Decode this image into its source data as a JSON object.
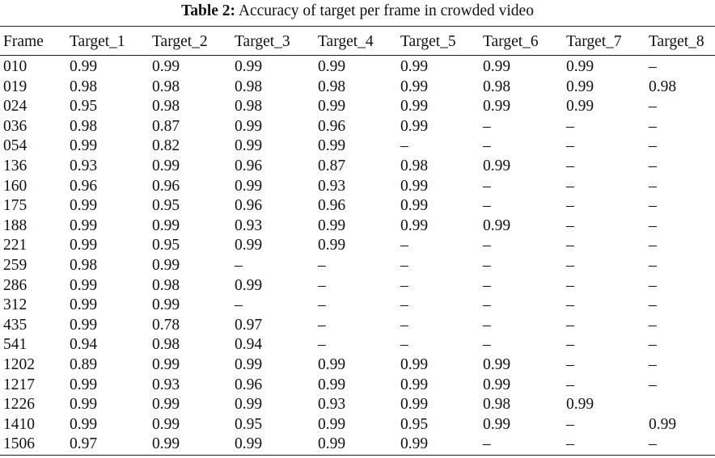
{
  "caption": {
    "label": "Table 2:",
    "text": "Accuracy of target per frame in crowded video"
  },
  "table": {
    "headers": [
      "Frame",
      "Target_1",
      "Target_2",
      "Target_3",
      "Target_4",
      "Target_5",
      "Target_6",
      "Target_7",
      "Target_8"
    ],
    "rows": [
      [
        "010",
        "0.99",
        "0.99",
        "0.99",
        "0.99",
        "0.99",
        "0.99",
        "0.99",
        "–"
      ],
      [
        "019",
        "0.98",
        "0.98",
        "0.98",
        "0.98",
        "0.99",
        "0.98",
        "0.99",
        "0.98"
      ],
      [
        "024",
        "0.95",
        "0.98",
        "0.98",
        "0.99",
        "0.99",
        "0.99",
        "0.99",
        "–"
      ],
      [
        "036",
        "0.98",
        "0.87",
        "0.99",
        "0.96",
        "0.99",
        "–",
        "–",
        "–"
      ],
      [
        "054",
        "0.99",
        "0.82",
        "0.99",
        "0.99",
        "–",
        "–",
        "–",
        "–"
      ],
      [
        "136",
        "0.93",
        "0.99",
        "0.96",
        "0.87",
        "0.98",
        "0.99",
        "–",
        "–"
      ],
      [
        "160",
        "0.96",
        "0.96",
        "0.99",
        "0.93",
        "0.99",
        "–",
        "–",
        "–"
      ],
      [
        "175",
        "0.99",
        "0.95",
        "0.96",
        "0.96",
        "0.99",
        "–",
        "–",
        "–"
      ],
      [
        "188",
        "0.99",
        "0.99",
        "0.93",
        "0.99",
        "0.99",
        "0.99",
        "–",
        "–"
      ],
      [
        "221",
        "0.99",
        "0.95",
        "0.99",
        "0.99",
        "–",
        "–",
        "–",
        "–"
      ],
      [
        "259",
        "0.98",
        "0.99",
        "–",
        "–",
        "–",
        "–",
        "–",
        "–"
      ],
      [
        "286",
        "0.99",
        "0.98",
        "0.99",
        "–",
        "–",
        "–",
        "–",
        "–"
      ],
      [
        "312",
        "0.99",
        "0.99",
        "–",
        "–",
        "–",
        "–",
        "–",
        "–"
      ],
      [
        "435",
        "0.99",
        "0.78",
        "0.97",
        "–",
        "–",
        "–",
        "–",
        "–"
      ],
      [
        "541",
        "0.94",
        "0.98",
        "0.94",
        "–",
        "–",
        "–",
        "–",
        "–"
      ],
      [
        "1202",
        "0.89",
        "0.99",
        "0.99",
        "0.99",
        "0.99",
        "0.99",
        "–",
        "–"
      ],
      [
        "1217",
        "0.99",
        "0.93",
        "0.96",
        "0.99",
        "0.99",
        "0.99",
        "–",
        "–"
      ],
      [
        "1226",
        "0.99",
        "0.99",
        "0.99",
        "0.93",
        "0.99",
        "0.98",
        "0.99",
        ""
      ],
      [
        "1410",
        "0.99",
        "0.99",
        "0.95",
        "0.99",
        "0.95",
        "0.99",
        "–",
        "0.99"
      ],
      [
        "1506",
        "0.97",
        "0.99",
        "0.99",
        "0.99",
        "0.99",
        "–",
        "–",
        "–"
      ]
    ]
  }
}
